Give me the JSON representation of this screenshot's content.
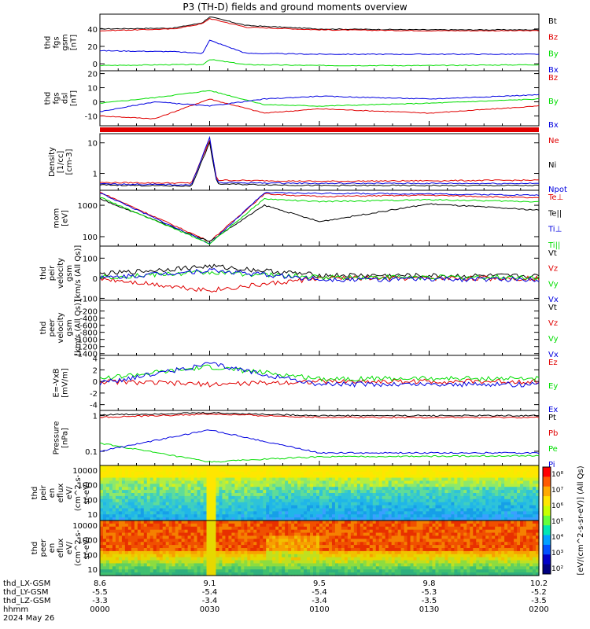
{
  "title": "P3 (TH-D) fields and ground moments overview",
  "colors": {
    "black": "#000000",
    "red": "#e00000",
    "green": "#00dd00",
    "blue": "#0000e0"
  },
  "chart_data": [
    {
      "type": "line",
      "panel": "fgs-gsm",
      "ylabel": [
        "thd",
        "fgs",
        "gsm",
        "[nT]"
      ],
      "ylim": [
        -8,
        57
      ],
      "yticks": [
        0,
        20,
        40
      ],
      "series": [
        {
          "name": "Bt",
          "color": "black",
          "x": [
            "00:00",
            "00:20",
            "00:28",
            "00:30",
            "00:40",
            "01:00",
            "01:30",
            "02:00"
          ],
          "values": [
            40,
            41,
            47,
            54,
            44,
            40,
            39,
            39
          ]
        },
        {
          "name": "Bz",
          "color": "red",
          "x": [
            "00:00",
            "00:20",
            "00:28",
            "00:30",
            "00:40",
            "01:00",
            "01:30",
            "02:00"
          ],
          "values": [
            38,
            40,
            46,
            52,
            42,
            39,
            38,
            38
          ]
        },
        {
          "name": "By",
          "color": "green",
          "x": [
            "00:00",
            "00:20",
            "00:28",
            "00:30",
            "00:40",
            "01:00",
            "01:30",
            "02:00"
          ],
          "values": [
            -2,
            -1,
            -1,
            5,
            -1,
            -2,
            -2,
            -1
          ]
        },
        {
          "name": "Bx",
          "color": "blue",
          "x": [
            "00:00",
            "00:20",
            "00:28",
            "00:30",
            "00:40",
            "01:00",
            "01:30",
            "02:00"
          ],
          "values": [
            15,
            14,
            12,
            27,
            12,
            11,
            11,
            11
          ]
        }
      ]
    },
    {
      "type": "line",
      "panel": "fgs-dsl",
      "ylabel": [
        "thd",
        "fgs",
        "dsl",
        "[nT]"
      ],
      "ylim": [
        -17,
        22
      ],
      "yticks": [
        -10,
        0,
        10,
        20
      ],
      "series": [
        {
          "name": "Bz",
          "color": "red",
          "x": [
            "00:00",
            "00:15",
            "00:30",
            "00:45",
            "01:00",
            "01:30",
            "02:00"
          ],
          "values": [
            -10,
            -12,
            2,
            -8,
            -5,
            -8,
            -3
          ]
        },
        {
          "name": "By",
          "color": "green",
          "x": [
            "00:00",
            "00:15",
            "00:30",
            "00:45",
            "01:00",
            "01:30",
            "02:00"
          ],
          "values": [
            -1,
            3,
            8,
            -2,
            -3,
            -1,
            2
          ]
        },
        {
          "name": "Bx",
          "color": "blue",
          "x": [
            "00:00",
            "00:15",
            "00:30",
            "00:45",
            "01:00",
            "01:30",
            "02:00"
          ],
          "values": [
            -7,
            0,
            -3,
            2,
            4,
            2,
            5
          ]
        }
      ]
    },
    {
      "type": "line",
      "panel": "density",
      "ylabel": [
        "Density",
        "[1/cc]",
        "[cm-3]"
      ],
      "yscale": "log",
      "ylim": [
        0.28,
        20
      ],
      "yticks": [
        1,
        10
      ],
      "series": [
        {
          "name": "Ne",
          "color": "red",
          "x": [
            "00:00",
            "00:25",
            "00:30",
            "00:32",
            "01:00",
            "02:00"
          ],
          "values": [
            0.5,
            0.48,
            12,
            0.6,
            0.55,
            0.6
          ]
        },
        {
          "name": "Ni",
          "color": "black",
          "x": [
            "00:00",
            "00:25",
            "00:30",
            "00:32",
            "01:00",
            "02:00"
          ],
          "values": [
            0.42,
            0.38,
            10,
            0.45,
            0.4,
            0.4
          ]
        },
        {
          "name": "Npot",
          "color": "blue",
          "x": [
            "00:00",
            "00:25",
            "00:30",
            "00:32",
            "01:00",
            "02:00"
          ],
          "values": [
            0.45,
            0.42,
            15,
            0.5,
            0.47,
            0.47
          ]
        }
      ]
    },
    {
      "type": "line",
      "panel": "temperature",
      "ylabel": [
        "mom",
        "[eV]"
      ],
      "yscale": "log",
      "ylim": [
        50,
        3000
      ],
      "yticks": [
        100,
        1000
      ],
      "series": [
        {
          "name": "Te⊥",
          "color": "red",
          "x": [
            "00:00",
            "00:30",
            "00:45",
            "01:00",
            "01:30",
            "02:00"
          ],
          "values": [
            2600,
            70,
            2300,
            1900,
            2100,
            1700
          ]
        },
        {
          "name": "Te||",
          "color": "black",
          "x": [
            "00:00",
            "00:30",
            "00:45",
            "01:00",
            "01:30",
            "02:00"
          ],
          "values": [
            1600,
            70,
            1000,
            300,
            1100,
            700
          ]
        },
        {
          "name": "Ti⊥",
          "color": "blue",
          "x": [
            "00:00",
            "00:30",
            "00:45",
            "01:00",
            "01:30",
            "02:00"
          ],
          "values": [
            2500,
            60,
            2500,
            2400,
            2300,
            2100
          ]
        },
        {
          "name": "Ti||",
          "color": "green",
          "x": [
            "00:00",
            "00:30",
            "00:45",
            "01:00",
            "01:30",
            "02:00"
          ],
          "values": [
            1800,
            60,
            1600,
            1300,
            1500,
            1300
          ]
        }
      ]
    },
    {
      "type": "line",
      "panel": "peir-velocity",
      "ylabel": [
        "thd",
        "peir",
        "velocity",
        "gsm",
        "[km/s (All Qs)]"
      ],
      "ylim": [
        -110,
        160
      ],
      "yticks": [
        -100,
        0,
        100
      ],
      "series": [
        {
          "name": "Vt",
          "color": "black",
          "x": [
            "00:00",
            "00:30",
            "01:00",
            "02:00"
          ],
          "values": [
            20,
            60,
            15,
            10
          ]
        },
        {
          "name": "Vz",
          "color": "red",
          "x": [
            "00:00",
            "00:30",
            "01:00",
            "02:00"
          ],
          "values": [
            0,
            -60,
            0,
            0
          ]
        },
        {
          "name": "Vy",
          "color": "green",
          "x": [
            "00:00",
            "00:30",
            "01:00",
            "02:00"
          ],
          "values": [
            5,
            30,
            5,
            5
          ]
        },
        {
          "name": "Vx",
          "color": "blue",
          "x": [
            "00:00",
            "00:30",
            "01:00",
            "02:00"
          ],
          "values": [
            0,
            40,
            -5,
            -5
          ]
        }
      ]
    },
    {
      "type": "line",
      "panel": "peer-velocity",
      "ylabel": [
        "thd",
        "peer",
        "velocity",
        "gsm",
        "[km/s (All Qs)]"
      ],
      "ylim": [
        -1450,
        100
      ],
      "yticks": [
        -1400,
        -1200,
        -1000,
        -800,
        -600,
        -400,
        -200
      ],
      "series": [
        {
          "name": "Vt",
          "color": "black",
          "x": [],
          "values": []
        },
        {
          "name": "Vz",
          "color": "red",
          "x": [],
          "values": []
        },
        {
          "name": "Vy",
          "color": "green",
          "x": [],
          "values": []
        },
        {
          "name": "Vx",
          "color": "blue",
          "x": [],
          "values": []
        }
      ]
    },
    {
      "type": "line",
      "panel": "efield",
      "ylabel": [
        "E=-VxB",
        "[mV/m]"
      ],
      "ylim": [
        -5,
        4.5
      ],
      "yticks": [
        -4,
        -2,
        0,
        2,
        4
      ],
      "series": [
        {
          "name": "Ez",
          "color": "red",
          "x": [
            "00:00",
            "00:30",
            "01:00",
            "02:00"
          ],
          "values": [
            0,
            -0.5,
            0,
            0
          ]
        },
        {
          "name": "Ey",
          "color": "green",
          "x": [
            "00:00",
            "00:30",
            "01:00",
            "02:00"
          ],
          "values": [
            0.5,
            2.5,
            0.5,
            0.5
          ]
        },
        {
          "name": "Ex",
          "color": "blue",
          "x": [
            "00:00",
            "00:30",
            "01:00",
            "02:00"
          ],
          "values": [
            -0.3,
            3,
            -0.5,
            -0.5
          ]
        }
      ]
    },
    {
      "type": "line",
      "panel": "pressure",
      "ylabel": [
        "Pressure",
        "[nPa]"
      ],
      "yscale": "log",
      "ylim": [
        0.04,
        1.4
      ],
      "yticks": [
        0.1,
        1.0
      ],
      "series": [
        {
          "name": "Pt",
          "color": "black",
          "x": [
            "00:00",
            "00:30",
            "01:00",
            "02:00"
          ],
          "values": [
            1.05,
            1.2,
            1.0,
            1.0
          ]
        },
        {
          "name": "Pb",
          "color": "red",
          "x": [
            "00:00",
            "00:30",
            "01:00",
            "02:00"
          ],
          "values": [
            0.9,
            1.1,
            0.9,
            0.88
          ]
        },
        {
          "name": "Pe",
          "color": "green",
          "x": [
            "00:00",
            "00:30",
            "00:45",
            "01:00",
            "02:00"
          ],
          "values": [
            0.17,
            0.05,
            0.06,
            0.07,
            0.075
          ]
        },
        {
          "name": "Pi",
          "color": "blue",
          "x": [
            "00:00",
            "00:30",
            "01:00",
            "02:00"
          ],
          "values": [
            0.1,
            0.4,
            0.09,
            0.09
          ]
        }
      ]
    },
    {
      "type": "heatmap",
      "panel": "peir-en-eflux",
      "ylabel": [
        "thd",
        "peir",
        "en",
        "eflux",
        "eV/",
        "(cm^2-s-",
        "sr-eV)"
      ],
      "yscale": "log",
      "yticks": [
        10,
        100,
        1000,
        10000
      ]
    },
    {
      "type": "heatmap",
      "panel": "peer-en-eflux",
      "ylabel": [
        "thd",
        "peer",
        "en",
        "eflux",
        "eV/",
        "(cm^2-s-",
        "sr-eV)"
      ],
      "yscale": "log",
      "yticks": [
        10,
        100,
        1000,
        10000
      ]
    }
  ],
  "colorbar": {
    "label": "[eV/(cm^2-s-sr-eV)] (All Qs)",
    "ticks": [
      "10⁸",
      "10⁷",
      "10⁶",
      "10⁵",
      "10⁴",
      "10³",
      "10²"
    ]
  },
  "xaxis": {
    "rows": [
      {
        "name": "thd_LX-GSM",
        "values": [
          "8.6",
          "9.1",
          "9.5",
          "9.8",
          "10.2"
        ]
      },
      {
        "name": "thd_LY-GSM",
        "values": [
          "-5.5",
          "-5.4",
          "-5.4",
          "-5.3",
          "-5.2"
        ]
      },
      {
        "name": "thd_LZ-GSM",
        "values": [
          "-3.3",
          "-3.4",
          "-3.4",
          "-3.5",
          "-3.5"
        ]
      },
      {
        "name": "hhmm",
        "values": [
          "0000",
          "0030",
          "0100",
          "0130",
          "0200"
        ]
      }
    ],
    "date": "2024 May 26"
  }
}
